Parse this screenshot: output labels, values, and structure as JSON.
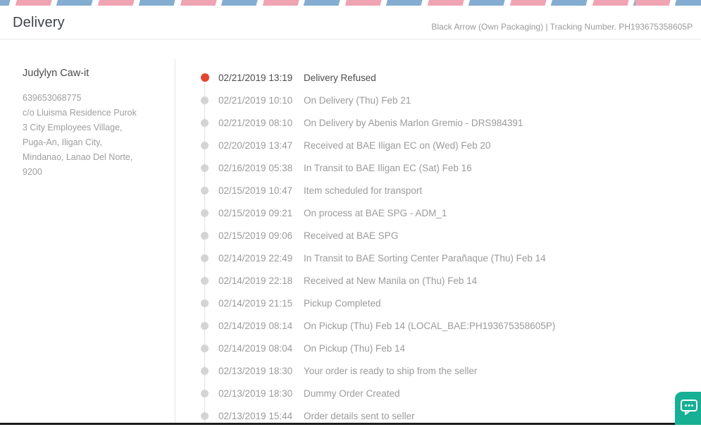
{
  "page": {
    "title": "Delivery",
    "header_right": "Black Arrow (Own Packaging) | Tracking Number. PH193675358605P"
  },
  "recipient": {
    "name": "Judylyn Caw-it",
    "phone": "639653068775",
    "address_lines": [
      "c/o Lluisma Residence Purok",
      "3 City Employees Village,",
      "Puga-An, Iligan City,",
      "Mindanao, Lanao Del Norte,",
      "9200"
    ]
  },
  "timeline": {
    "events": [
      {
        "datetime": "02/21/2019 13:19",
        "description": "Delivery Refused",
        "active": true
      },
      {
        "datetime": "02/21/2019 10:10",
        "description": "On Delivery (Thu) Feb 21",
        "active": false
      },
      {
        "datetime": "02/21/2019 08:10",
        "description": "On Delivery by Abenis Marlon Gremio - DRS984391",
        "active": false
      },
      {
        "datetime": "02/20/2019 13:47",
        "description": "Received at BAE Iligan EC on (Wed) Feb 20",
        "active": false
      },
      {
        "datetime": "02/16/2019 05:38",
        "description": "In Transit to BAE Iligan EC (Sat) Feb 16",
        "active": false
      },
      {
        "datetime": "02/15/2019 10:47",
        "description": "Item scheduled for transport",
        "active": false
      },
      {
        "datetime": "02/15/2019 09:21",
        "description": "On process at BAE SPG - ADM_1",
        "active": false
      },
      {
        "datetime": "02/15/2019 09:06",
        "description": "Received at BAE SPG",
        "active": false
      },
      {
        "datetime": "02/14/2019 22:49",
        "description": "In Transit to BAE Sorting Center Parañaque (Thu) Feb 14",
        "active": false
      },
      {
        "datetime": "02/14/2019 22:18",
        "description": "Received at New Manila on (Thu) Feb 14",
        "active": false
      },
      {
        "datetime": "02/14/2019 21:15",
        "description": "Pickup Completed",
        "active": false
      },
      {
        "datetime": "02/14/2019 08:14",
        "description": "On Pickup (Thu) Feb 14 (LOCAL_BAE:PH193675358605P)",
        "active": false
      },
      {
        "datetime": "02/14/2019 08:04",
        "description": "On Pickup (Thu) Feb 14",
        "active": false
      },
      {
        "datetime": "02/13/2019 18:30",
        "description": "Your order is ready to ship from the seller",
        "active": false
      },
      {
        "datetime": "02/13/2019 18:30",
        "description": "Dummy Order Created",
        "active": false
      },
      {
        "datetime": "02/13/2019 15:44",
        "description": "Order details sent to seller",
        "active": false
      }
    ]
  },
  "chat_widget": {
    "icon": "chat-bubble-icon"
  },
  "colors": {
    "active_dot": "#e0472e",
    "inactive_dot": "#d4d4d4",
    "stripe_pink": "#f0a3b3",
    "stripe_blue": "#84add1",
    "chat_green": "#17b094"
  }
}
